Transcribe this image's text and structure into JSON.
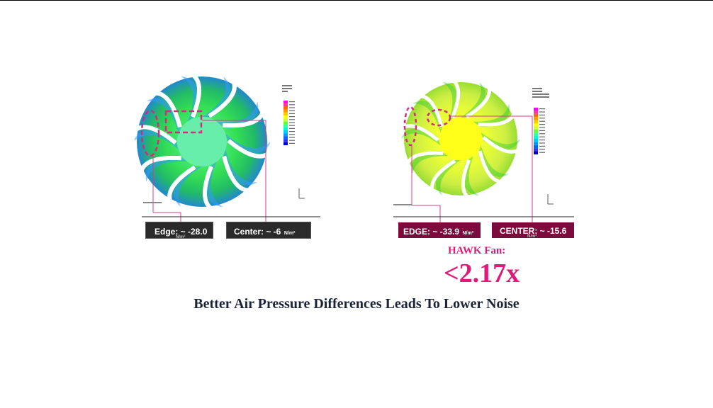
{
  "colors": {
    "accent_pink": "#e01a7a",
    "maroon_box": "#7d0a3c",
    "dark_box": "#2a2a2a",
    "tagline": "#1b2338",
    "annotation_line": "#d43c8c"
  },
  "left_fan": {
    "edge_label": "Edge: ~ -28.0",
    "edge_unit_below": "N/m²",
    "center_label": "Center: ~ -6",
    "center_unit": "N/m²",
    "legend_colors": [
      "#ff00ff",
      "#ff3399",
      "#ff6600",
      "#ff9900",
      "#ffcc00",
      "#ffff00",
      "#ccff33",
      "#66ff33",
      "#33ff99",
      "#00ffcc",
      "#00ccff",
      "#0099ff",
      "#0066ff",
      "#3333ff",
      "#0000cc"
    ]
  },
  "right_fan": {
    "edge_label": "EDGE: ~ -33.9",
    "edge_unit": "N/m²",
    "center_label": "CENTER: ~ -15.6",
    "center_unit_below": "N/m²",
    "legend_colors": [
      "#ff00ff",
      "#ff3399",
      "#ff6600",
      "#ff9900",
      "#ffcc00",
      "#ffff00",
      "#ccff33",
      "#66ff33",
      "#33ff99",
      "#00ffcc",
      "#00ccff",
      "#0099ff",
      "#0066ff",
      "#3333ff",
      "#0000cc"
    ]
  },
  "hawk_label": "HAWK Fan:",
  "ratio": "<2.17x",
  "tagline": "Better Air Pressure Differences Leads To Lower Noise"
}
